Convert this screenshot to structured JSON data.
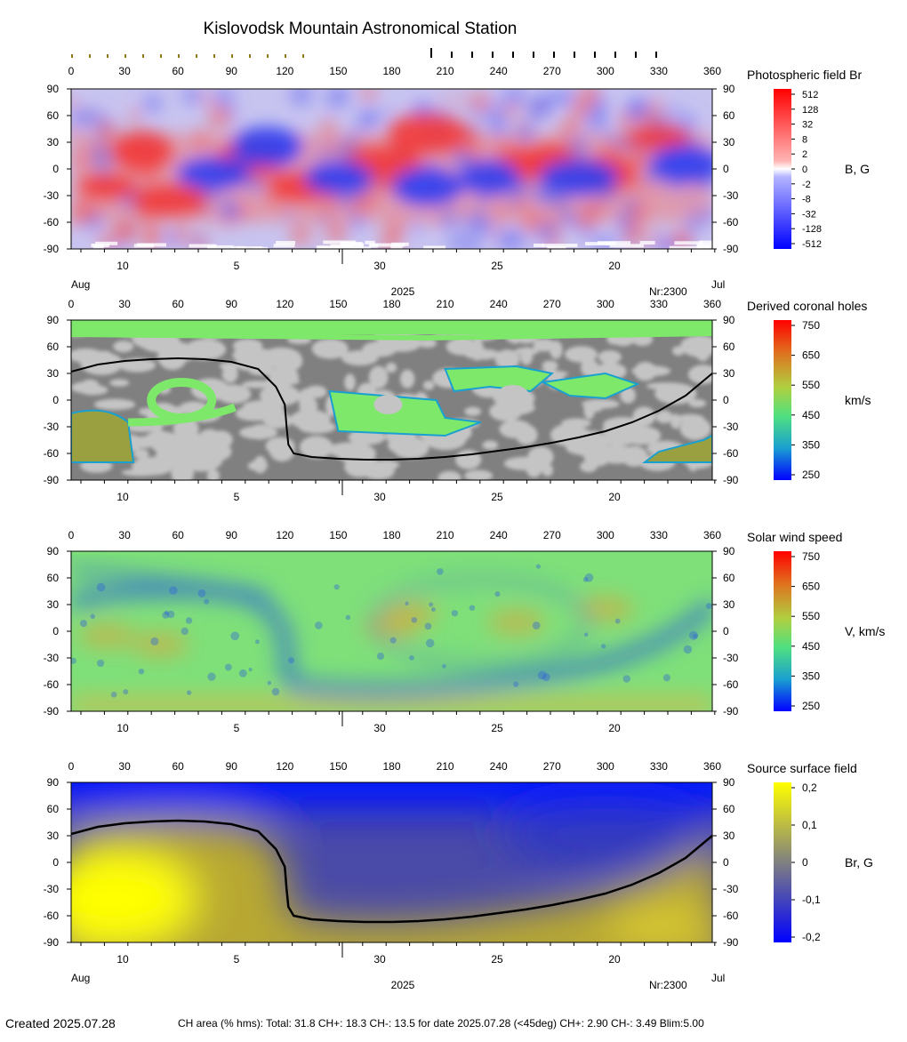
{
  "title": "Kislovodsk Mountain Astronomical Station",
  "lon_ticks": [
    "0",
    "30",
    "60",
    "90",
    "120",
    "150",
    "180",
    "210",
    "240",
    "270",
    "300",
    "330",
    "360"
  ],
  "lat_ticks": [
    "90",
    "60",
    "30",
    "0",
    "-30",
    "-60",
    "-90"
  ],
  "date_ticks": [
    "10",
    "5",
    "30",
    "25",
    "20"
  ],
  "month_left": "Aug",
  "month_right": "Jul",
  "year": "2025",
  "rotation": "Nr:2300",
  "footer": {
    "created": "Created  2025.07.28",
    "stats": "CH area (% hms): Total: 31.8 CH+: 18.3   CH-: 13.5 for date 2025.07.28 (<45deg) CH+: 2.90    CH-: 3.49 Blim:5.00"
  },
  "panels": [
    {
      "id": "photospheric",
      "legend_title": "Photospheric field Br",
      "unit": "B, G",
      "colorbar": {
        "type": "diverging-rb",
        "labels": [
          "512",
          "128",
          "32",
          "8",
          "2",
          "0",
          "-2",
          "-8",
          "-32",
          "-128",
          "-512"
        ]
      }
    },
    {
      "id": "coronal-holes",
      "legend_title": "Derived coronal holes",
      "unit": "km/s",
      "colorbar": {
        "type": "jet",
        "labels": [
          "750",
          "650",
          "550",
          "450",
          "350",
          "250"
        ]
      }
    },
    {
      "id": "solar-wind",
      "legend_title": "Solar wind speed",
      "unit": "V, km/s",
      "colorbar": {
        "type": "jet",
        "labels": [
          "750",
          "650",
          "550",
          "450",
          "350",
          "250"
        ]
      }
    },
    {
      "id": "source-surface",
      "legend_title": "Source surface field",
      "unit": "Br, G",
      "colorbar": {
        "type": "yellow-blue",
        "labels": [
          "0,2",
          "0,1",
          "0",
          "-0,1",
          "-0,2"
        ]
      }
    }
  ],
  "colors": {
    "field_positive": "#f23a3a",
    "field_negative": "#2f3ff2",
    "ch_gray_dark": "#808080",
    "ch_gray_light": "#c4c4c4",
    "ch_green": "#7de86a",
    "wind_background": "#7fe07a",
    "wind_lanes": "#2f63d8",
    "ss_positive": "#ffff00",
    "ss_negative": "#0019ff",
    "neutral_line": "#000000"
  },
  "chart_data": [
    {
      "type": "heatmap",
      "title": "Photospheric field Br",
      "colorbar_label": "B, G",
      "x_range": [
        0,
        360
      ],
      "y_range": [
        -90,
        90
      ],
      "z_scale": "log-symmetric",
      "z_ticks": [
        512,
        128,
        32,
        8,
        2,
        0,
        -2,
        -8,
        -32,
        -128,
        -512
      ],
      "blobs": [
        {
          "lon": 20,
          "lat": -20,
          "sign": 1
        },
        {
          "lon": 55,
          "lat": -35,
          "sign": 1
        },
        {
          "lon": 40,
          "lat": 20,
          "sign": 1
        },
        {
          "lon": 100,
          "lat": 10,
          "sign": 1
        },
        {
          "lon": 130,
          "lat": -20,
          "sign": 1
        },
        {
          "lon": 175,
          "lat": 5,
          "sign": 1
        },
        {
          "lon": 255,
          "lat": 5,
          "sign": 1
        },
        {
          "lon": 270,
          "lat": 10,
          "sign": 1
        },
        {
          "lon": 300,
          "lat": -5,
          "sign": 1
        },
        {
          "lon": 330,
          "lat": 35,
          "sign": 1
        },
        {
          "lon": 200,
          "lat": 40,
          "sign": 1
        },
        {
          "lon": 80,
          "lat": -5,
          "sign": -1
        },
        {
          "lon": 150,
          "lat": -10,
          "sign": -1
        },
        {
          "lon": 200,
          "lat": -20,
          "sign": -1
        },
        {
          "lon": 235,
          "lat": -10,
          "sign": -1
        },
        {
          "lon": 285,
          "lat": -10,
          "sign": -1
        },
        {
          "lon": 345,
          "lat": 5,
          "sign": -1
        },
        {
          "lon": 110,
          "lat": 25,
          "sign": -1
        }
      ]
    },
    {
      "type": "heatmap",
      "title": "Derived coronal holes",
      "colorbar_label": "km/s",
      "x_range": [
        0,
        360
      ],
      "y_range": [
        -90,
        90
      ],
      "z_range": [
        250,
        750
      ],
      "coronal_holes": [
        {
          "name": "north-polar",
          "lon_range": [
            0,
            360
          ],
          "lat_range": [
            78,
            90
          ]
        },
        {
          "name": "south-west",
          "lon_range": [
            0,
            35
          ],
          "lat_range": [
            -70,
            -15
          ]
        },
        {
          "name": "south-east",
          "lon_range": [
            322,
            360
          ],
          "lat_range": [
            -70,
            -40
          ]
        },
        {
          "name": "ring-60",
          "lon_range": [
            40,
            115
          ],
          "lat_range": [
            -15,
            20
          ]
        },
        {
          "name": "center-chain",
          "lon_range": [
            145,
            310
          ],
          "lat_range": [
            -40,
            40
          ]
        }
      ]
    },
    {
      "type": "heatmap",
      "title": "Solar wind speed",
      "colorbar_label": "V, km/s",
      "x_range": [
        0,
        360
      ],
      "y_range": [
        -90,
        90
      ],
      "z_range": [
        250,
        750
      ]
    },
    {
      "type": "heatmap",
      "title": "Source surface field",
      "colorbar_label": "Br, G",
      "x_range": [
        0,
        360
      ],
      "y_range": [
        -90,
        90
      ],
      "z_range": [
        -0.25,
        0.25
      ],
      "neutral_line": {
        "lon": [
          0,
          15,
          30,
          45,
          60,
          75,
          90,
          105,
          115,
          120,
          121,
          122,
          125,
          135,
          150,
          165,
          180,
          195,
          210,
          225,
          240,
          255,
          270,
          285,
          300,
          315,
          330,
          345,
          360
        ],
        "lat": [
          32,
          40,
          44,
          46,
          47,
          46,
          43,
          35,
          15,
          -5,
          -30,
          -50,
          -60,
          -64,
          -66,
          -67,
          -67,
          -66,
          -64,
          -61,
          -57,
          -53,
          -48,
          -42,
          -35,
          -25,
          -12,
          5,
          30
        ]
      }
    }
  ]
}
